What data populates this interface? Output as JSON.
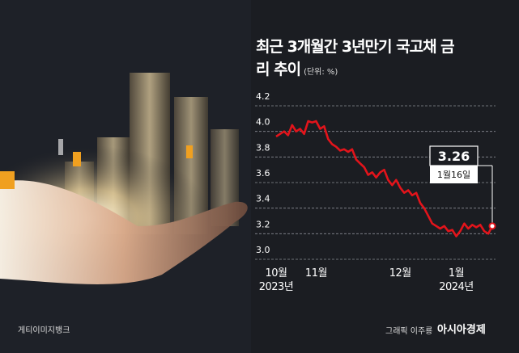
{
  "chart_data": {
    "type": "line",
    "title": "최근 3개월간 3년만기 국고채 금리 추이",
    "unit": "(단위: %)",
    "categories": [
      "10월\n2023년",
      null,
      null,
      null,
      null,
      null,
      null,
      null,
      null,
      null,
      "11월",
      null,
      null,
      null,
      null,
      null,
      null,
      null,
      null,
      null,
      null,
      null,
      null,
      null,
      null,
      null,
      null,
      null,
      null,
      null,
      null,
      "12월",
      null,
      null,
      null,
      null,
      null,
      null,
      null,
      null,
      null,
      null,
      null,
      null,
      null,
      "1월\n2024년",
      null,
      null,
      null,
      null,
      null,
      null,
      null,
      null,
      null
    ],
    "series": [
      {
        "name": "3년만기 국고채 금리",
        "color": "#e3141b",
        "values": [
          3.96,
          3.98,
          4.0,
          3.97,
          4.05,
          4.0,
          4.02,
          3.98,
          4.08,
          4.07,
          4.08,
          4.02,
          4.04,
          3.94,
          3.9,
          3.88,
          3.85,
          3.86,
          3.84,
          3.86,
          3.78,
          3.75,
          3.72,
          3.66,
          3.68,
          3.64,
          3.68,
          3.7,
          3.62,
          3.58,
          3.62,
          3.56,
          3.52,
          3.54,
          3.5,
          3.52,
          3.44,
          3.4,
          3.34,
          3.28,
          3.26,
          3.24,
          3.26,
          3.22,
          3.23,
          3.18,
          3.22,
          3.28,
          3.24,
          3.27,
          3.25,
          3.27,
          3.22,
          3.2,
          3.26
        ]
      }
    ],
    "ylim": [
      3.0,
      4.2
    ],
    "yticks": [
      {
        "value": 3,
        "label": "3.0"
      },
      3.2,
      3.4,
      3.6,
      3.8,
      {
        "value": 4,
        "label": "4.0"
      },
      4.2
    ],
    "grid": true,
    "callout_date": "1월16일"
  },
  "photo_credit": "게티이미지뱅크",
  "graphic_credit": "그래픽 이주룡",
  "brand": "아시아경제"
}
